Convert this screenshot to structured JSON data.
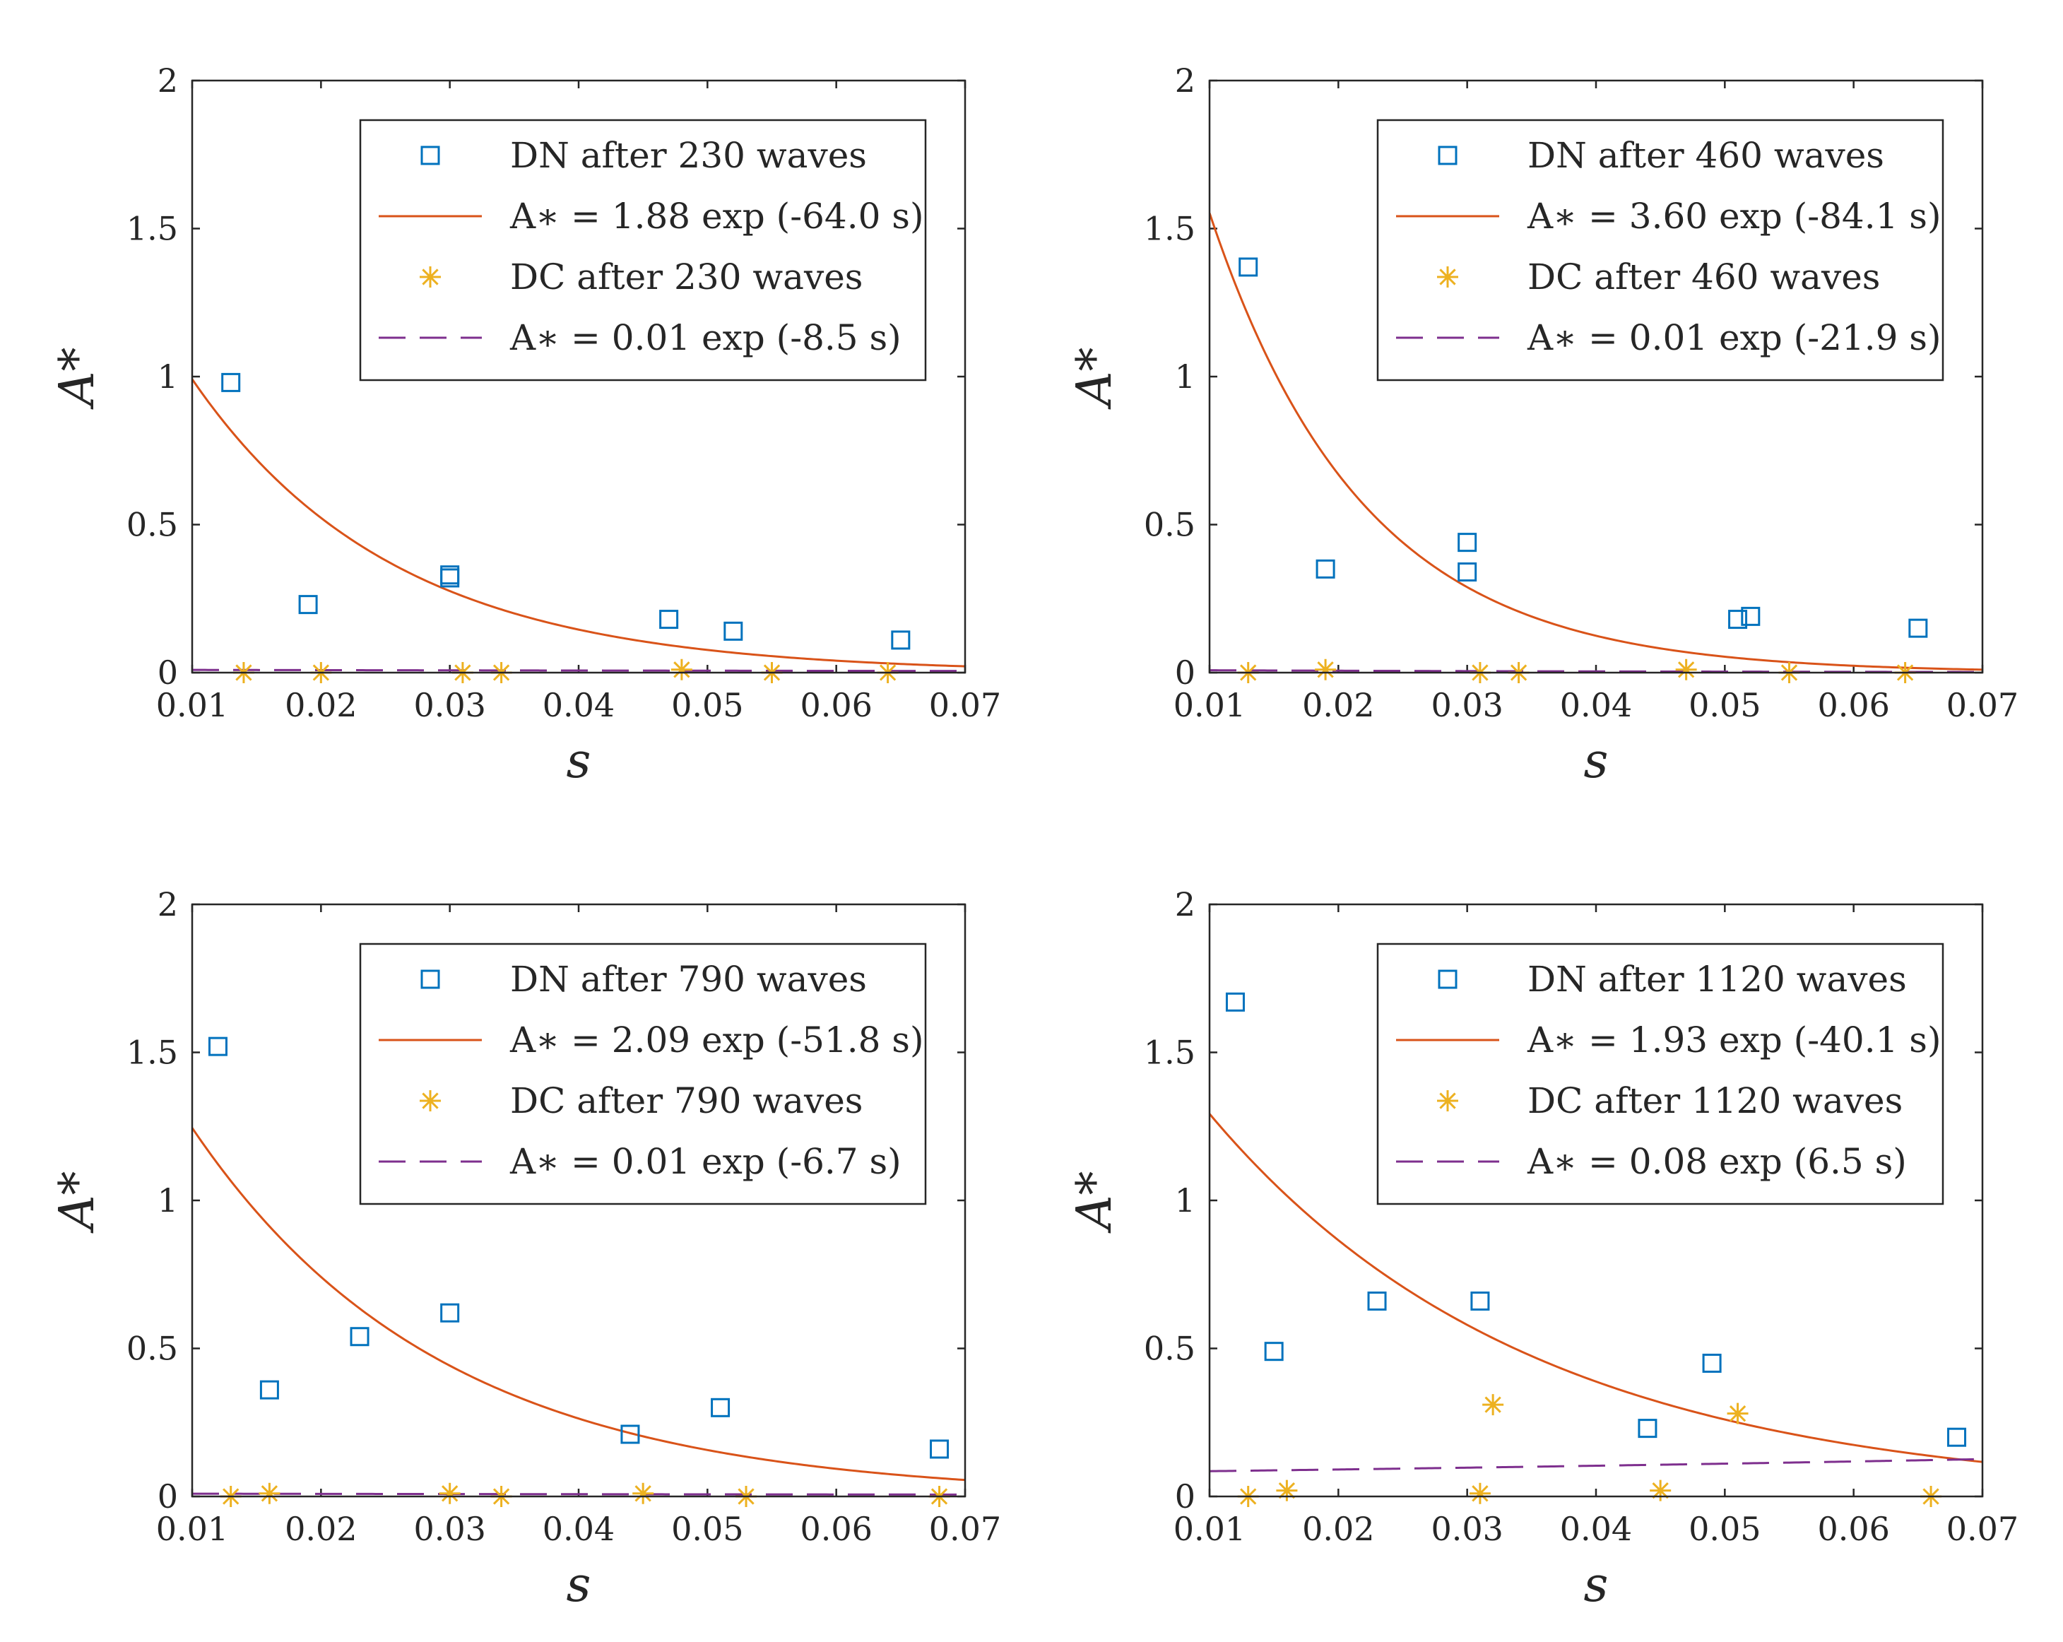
{
  "chart_data": [
    {
      "type": "scatter",
      "xlabel": "s",
      "ylabel": "A*",
      "xlim": [
        0.01,
        0.07
      ],
      "ylim": [
        0,
        2
      ],
      "xticks": [
        "0.01",
        "0.02",
        "0.03",
        "0.04",
        "0.05",
        "0.06",
        "0.07"
      ],
      "yticks": [
        "0",
        "0.5",
        "1",
        "1.5",
        "2"
      ],
      "legend_position": "top-right",
      "series": [
        {
          "name": "DN after 230 waves",
          "kind": "markers",
          "marker": "square",
          "color": "#0072BD",
          "x": [
            0.013,
            0.019,
            0.03,
            0.03,
            0.047,
            0.052,
            0.065
          ],
          "y": [
            0.98,
            0.23,
            0.33,
            0.32,
            0.18,
            0.14,
            0.11
          ]
        },
        {
          "name": "A∗ = 1.88 exp (-64.0 s)",
          "kind": "fit",
          "style": "solid",
          "color": "#D95319",
          "a": 1.88,
          "b": -64.0
        },
        {
          "name": "DC after 230 waves",
          "kind": "markers",
          "marker": "asterisk",
          "color": "#EDB120",
          "x": [
            0.014,
            0.02,
            0.031,
            0.034,
            0.048,
            0.055,
            0.064
          ],
          "y": [
            0.0,
            0.0,
            0.0,
            0.0,
            0.01,
            0.0,
            0.0
          ]
        },
        {
          "name": "A∗ = 0.01 exp (-8.5 s)",
          "kind": "fit",
          "style": "dashed",
          "color": "#7E2F8E",
          "a": 0.01,
          "b": -8.5
        }
      ]
    },
    {
      "type": "scatter",
      "xlabel": "s",
      "ylabel": "A*",
      "xlim": [
        0.01,
        0.07
      ],
      "ylim": [
        0,
        2
      ],
      "xticks": [
        "0.01",
        "0.02",
        "0.03",
        "0.04",
        "0.05",
        "0.06",
        "0.07"
      ],
      "yticks": [
        "0",
        "0.5",
        "1",
        "1.5",
        "2"
      ],
      "legend_position": "top-right",
      "series": [
        {
          "name": "DN after 460 waves",
          "kind": "markers",
          "marker": "square",
          "color": "#0072BD",
          "x": [
            0.013,
            0.019,
            0.03,
            0.03,
            0.051,
            0.052,
            0.065
          ],
          "y": [
            1.37,
            0.35,
            0.44,
            0.34,
            0.18,
            0.19,
            0.15
          ]
        },
        {
          "name": "A∗ = 3.60 exp (-84.1 s)",
          "kind": "fit",
          "style": "solid",
          "color": "#D95319",
          "a": 3.6,
          "b": -84.1
        },
        {
          "name": "DC after 460 waves",
          "kind": "markers",
          "marker": "asterisk",
          "color": "#EDB120",
          "x": [
            0.013,
            0.019,
            0.031,
            0.034,
            0.047,
            0.055,
            0.064
          ],
          "y": [
            0.0,
            0.01,
            0.0,
            0.0,
            0.01,
            0.0,
            0.0
          ]
        },
        {
          "name": "A∗ = 0.01 exp (-21.9 s)",
          "kind": "fit",
          "style": "dashed",
          "color": "#7E2F8E",
          "a": 0.01,
          "b": -21.9
        }
      ]
    },
    {
      "type": "scatter",
      "xlabel": "s",
      "ylabel": "A*",
      "xlim": [
        0.01,
        0.07
      ],
      "ylim": [
        0,
        2
      ],
      "xticks": [
        "0.01",
        "0.02",
        "0.03",
        "0.04",
        "0.05",
        "0.06",
        "0.07"
      ],
      "yticks": [
        "0",
        "0.5",
        "1",
        "1.5",
        "2"
      ],
      "legend_position": "top-right",
      "series": [
        {
          "name": "DN after 790 waves",
          "kind": "markers",
          "marker": "square",
          "color": "#0072BD",
          "x": [
            0.012,
            0.016,
            0.023,
            0.03,
            0.044,
            0.051,
            0.068
          ],
          "y": [
            1.52,
            0.36,
            0.54,
            0.62,
            0.21,
            0.3,
            0.16
          ]
        },
        {
          "name": "A∗ = 2.09 exp (-51.8 s)",
          "kind": "fit",
          "style": "solid",
          "color": "#D95319",
          "a": 2.09,
          "b": -51.8
        },
        {
          "name": "DC after 790 waves",
          "kind": "markers",
          "marker": "asterisk",
          "color": "#EDB120",
          "x": [
            0.013,
            0.016,
            0.03,
            0.034,
            0.045,
            0.053,
            0.068
          ],
          "y": [
            0.0,
            0.01,
            0.01,
            0.0,
            0.01,
            0.0,
            0.0
          ]
        },
        {
          "name": "A∗ = 0.01 exp (-6.7 s)",
          "kind": "fit",
          "style": "dashed",
          "color": "#7E2F8E",
          "a": 0.01,
          "b": -6.7
        }
      ]
    },
    {
      "type": "scatter",
      "xlabel": "s",
      "ylabel": "A*",
      "xlim": [
        0.01,
        0.07
      ],
      "ylim": [
        0,
        2
      ],
      "xticks": [
        "0.01",
        "0.02",
        "0.03",
        "0.04",
        "0.05",
        "0.06",
        "0.07"
      ],
      "yticks": [
        "0",
        "0.5",
        "1",
        "1.5",
        "2"
      ],
      "legend_position": "top-right",
      "series": [
        {
          "name": "DN after 1120 waves",
          "kind": "markers",
          "marker": "square",
          "color": "#0072BD",
          "x": [
            0.012,
            0.015,
            0.023,
            0.031,
            0.044,
            0.049,
            0.068
          ],
          "y": [
            1.67,
            0.49,
            0.66,
            0.66,
            0.23,
            0.45,
            0.2
          ]
        },
        {
          "name": "A∗ = 1.93 exp (-40.1 s)",
          "kind": "fit",
          "style": "solid",
          "color": "#D95319",
          "a": 1.93,
          "b": -40.1
        },
        {
          "name": "DC after 1120 waves",
          "kind": "markers",
          "marker": "asterisk",
          "color": "#EDB120",
          "x": [
            0.013,
            0.016,
            0.031,
            0.032,
            0.045,
            0.051,
            0.066
          ],
          "y": [
            0.0,
            0.02,
            0.01,
            0.31,
            0.02,
            0.28,
            0.0
          ]
        },
        {
          "name": "A∗ = 0.08 exp (6.5 s)",
          "kind": "fit",
          "style": "dashed",
          "color": "#7E2F8E",
          "a": 0.08,
          "b": 6.5
        }
      ]
    }
  ]
}
